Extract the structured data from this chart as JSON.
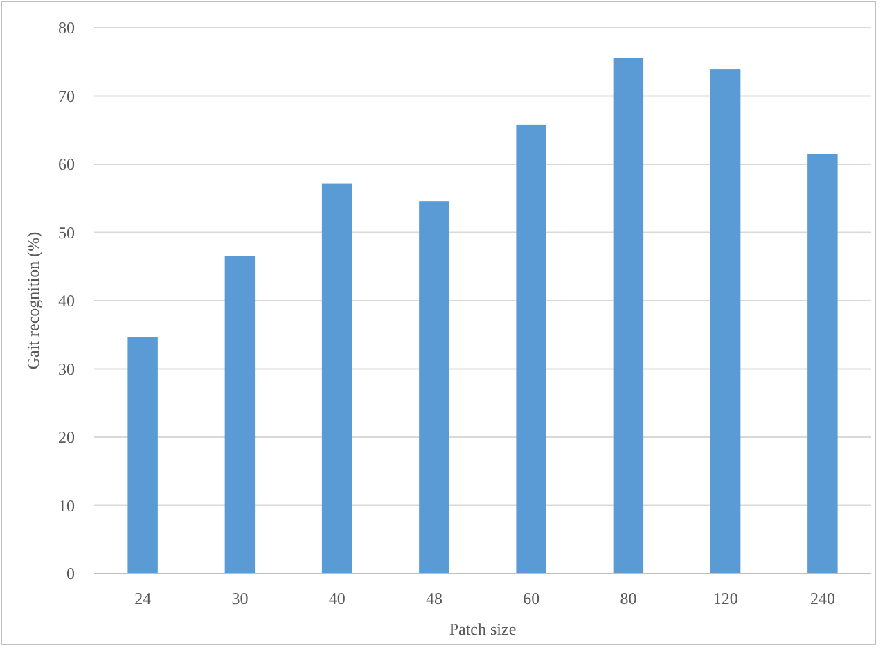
{
  "chart_data": {
    "type": "bar",
    "xlabel": "Patch size",
    "ylabel": "Gait recognition (%)",
    "categories": [
      "24",
      "30",
      "40",
      "48",
      "60",
      "80",
      "120",
      "240"
    ],
    "values": [
      34.7,
      46.5,
      57.2,
      54.6,
      65.8,
      75.6,
      73.9,
      61.5
    ],
    "color": "#5b9bd5",
    "ylim": [
      0,
      80
    ],
    "yticks": [
      0,
      10,
      20,
      30,
      40,
      50,
      60,
      70,
      80
    ],
    "grid": "y"
  }
}
